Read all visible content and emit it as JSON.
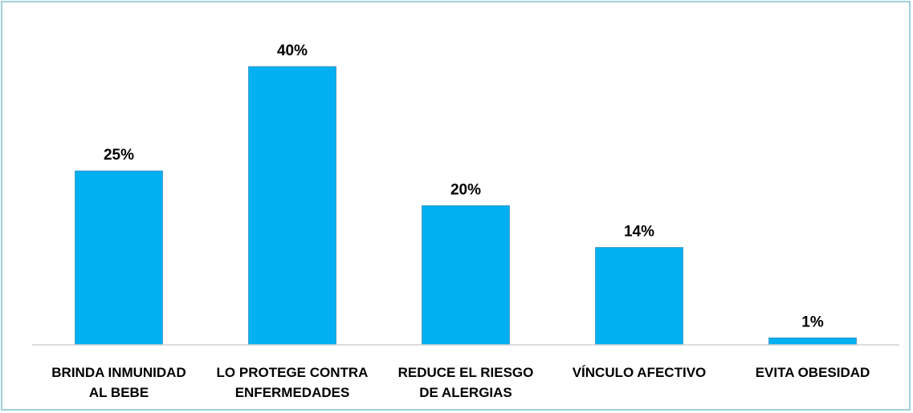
{
  "chart_data": {
    "type": "bar",
    "categories": [
      [
        "BRINDA INMUNIDAD",
        "AL BEBE"
      ],
      [
        "LO PROTEGE CONTRA",
        "ENFERMEDADES"
      ],
      [
        "REDUCE EL RIESGO",
        "DE ALERGIAS"
      ],
      [
        "VÍNCULO AFECTIVO"
      ],
      [
        "EVITA OBESIDAD"
      ]
    ],
    "values": [
      25,
      40,
      20,
      14,
      1
    ],
    "data_labels": [
      "25%",
      "40%",
      "20%",
      "14%",
      "1%"
    ],
    "title": "",
    "xlabel": "",
    "ylabel": "",
    "ylim": [
      0,
      40
    ],
    "grid": false,
    "legend": "none",
    "bar_color": "#00b0f0",
    "frame_color": "#9ecfe0"
  }
}
